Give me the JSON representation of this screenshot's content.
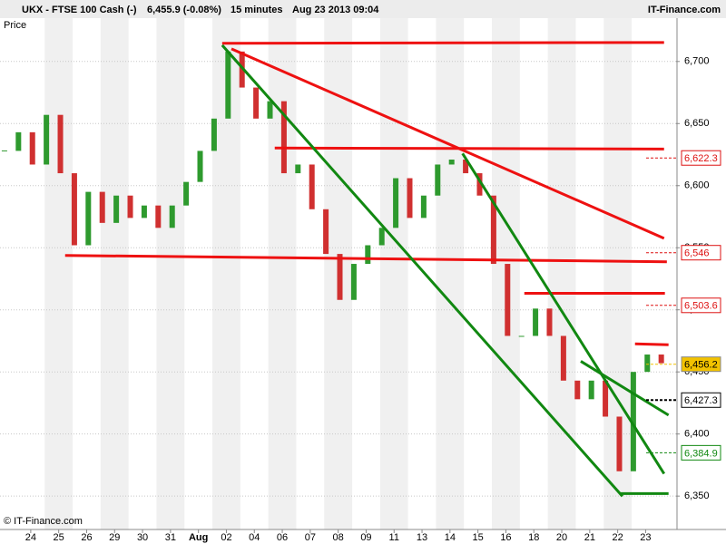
{
  "chart_data": {
    "type": "candlestick",
    "header": {
      "symbol": "UKX - FTSE 100 Cash (-)",
      "price": "6,455.9 (-0.08%)",
      "interval": "15 minutes",
      "datetime": "Aug 23 2013 09:04",
      "source": "IT-Finance.com"
    },
    "ylabel": "Price",
    "credit": "© IT-Finance.com",
    "xlim": [
      -1.1,
      23.09
    ],
    "ylim": [
      6323.1,
      6734.9
    ],
    "xticks": [
      {
        "value": 0,
        "label": "24"
      },
      {
        "value": 1,
        "label": "25"
      },
      {
        "value": 2,
        "label": "26"
      },
      {
        "value": 3,
        "label": "29"
      },
      {
        "value": 4,
        "label": "30"
      },
      {
        "value": 5,
        "label": "31"
      },
      {
        "value": 6,
        "label": "Aug"
      },
      {
        "value": 7,
        "label": "02"
      },
      {
        "value": 8,
        "label": "04"
      },
      {
        "value": 9,
        "label": "06"
      },
      {
        "value": 10,
        "label": "07"
      },
      {
        "value": 11,
        "label": "08"
      },
      {
        "value": 12,
        "label": "09"
      },
      {
        "value": 13,
        "label": "11"
      },
      {
        "value": 14,
        "label": "13"
      },
      {
        "value": 15,
        "label": "14"
      },
      {
        "value": 16,
        "label": "15"
      },
      {
        "value": 17,
        "label": "16"
      },
      {
        "value": 18,
        "label": "18"
      },
      {
        "value": 19,
        "label": "20"
      },
      {
        "value": 20,
        "label": "21"
      },
      {
        "value": 21,
        "label": "22"
      },
      {
        "value": 22,
        "label": "23"
      }
    ],
    "yticks": [
      {
        "value": 6350,
        "label": "6,350"
      },
      {
        "value": 6400,
        "label": "6,400"
      },
      {
        "value": 6450,
        "label": "6,450"
      },
      {
        "value": 6500,
        "label": "6,500"
      },
      {
        "value": 6550,
        "label": "6,550"
      },
      {
        "value": 6600,
        "label": "6,600"
      },
      {
        "value": 6650,
        "label": "6,650"
      },
      {
        "value": 6700,
        "label": "6,700"
      }
    ],
    "grid": true,
    "up_color": "#2e9a2e",
    "down_color": "#d03030",
    "x": [
      -0.94,
      -0.44,
      0.06,
      0.56,
      1.06,
      1.56,
      2.06,
      2.56,
      3.06,
      3.56,
      4.06,
      4.56,
      5.06,
      5.56,
      6.06,
      6.56,
      7.06,
      7.56,
      8.06,
      8.56,
      9.06,
      9.56,
      10.06,
      10.56,
      11.06,
      11.56,
      12.06,
      12.56,
      13.06,
      13.56,
      14.06,
      14.56,
      15.06,
      15.56,
      16.06,
      16.56,
      17.06,
      17.56,
      18.06,
      18.56,
      19.06,
      19.56,
      20.06,
      20.56,
      21.06,
      21.56,
      22.06,
      22.56
    ],
    "values": [
      6628,
      6643,
      6617,
      6657,
      6610,
      6552,
      6595,
      6570,
      6592,
      6574,
      6584,
      6566,
      6584,
      6603,
      6628,
      6654,
      6708,
      6679,
      6654,
      6668,
      6610,
      6617,
      6581,
      6545,
      6508,
      6537,
      6552,
      6566,
      6606,
      6574,
      6592,
      6617,
      6621,
      6610,
      6592,
      6537,
      6479,
      6479,
      6501,
      6479,
      6443,
      6428,
      6443,
      6414,
      6370,
      6450,
      6464,
      6457
    ],
    "trendlines": [
      {
        "color": "#ee1111",
        "x": [
          6.85,
          22.66
        ],
        "y": [
          6714.6,
          6715.3
        ]
      },
      {
        "color": "#ee1111",
        "x": [
          7.18,
          22.66
        ],
        "y": [
          6710.2,
          6557.6
        ]
      },
      {
        "color": "#ee1111",
        "x": [
          8.73,
          22.66
        ],
        "y": [
          6630.3,
          6629.5
        ]
      },
      {
        "color": "#ee1111",
        "x": [
          1.23,
          22.76
        ],
        "y": [
          6543.8,
          6538.7
        ]
      },
      {
        "color": "#ee1111",
        "x": [
          17.66,
          22.69
        ],
        "y": [
          6513.3,
          6513.3
        ]
      },
      {
        "color": "#ee1111",
        "x": [
          21.62,
          22.82
        ],
        "y": [
          6472.6,
          6471.9
        ]
      },
      {
        "color": "#118811",
        "x": [
          6.85,
          21.17
        ],
        "y": [
          6713.1,
          6349.8
        ]
      },
      {
        "color": "#118811",
        "x": [
          15.45,
          22.66
        ],
        "y": [
          6625.9,
          6368
        ]
      },
      {
        "color": "#118811",
        "x": [
          19.68,
          22.82
        ],
        "y": [
          6458.6,
          6415.2
        ]
      },
      {
        "color": "#118811",
        "x": [
          21.1,
          22.82
        ],
        "y": [
          6352,
          6352
        ]
      }
    ],
    "levels": [
      {
        "value": 6622.3,
        "label": "6,622.3",
        "color": "#dd1111",
        "style": "outline"
      },
      {
        "value": 6546,
        "label": "6,546",
        "color": "#dd1111",
        "style": "outline"
      },
      {
        "value": 6503.6,
        "label": "6,503.6",
        "color": "#dd1111",
        "style": "outline"
      },
      {
        "value": 6456.2,
        "label": "6,456.2",
        "color": "#f2c200",
        "style": "filled"
      },
      {
        "value": 6427.3,
        "label": "6,427.3",
        "color": "#000000",
        "style": "outline"
      },
      {
        "value": 6384.9,
        "label": "6,384.9",
        "color": "#118811",
        "style": "outline"
      }
    ]
  }
}
